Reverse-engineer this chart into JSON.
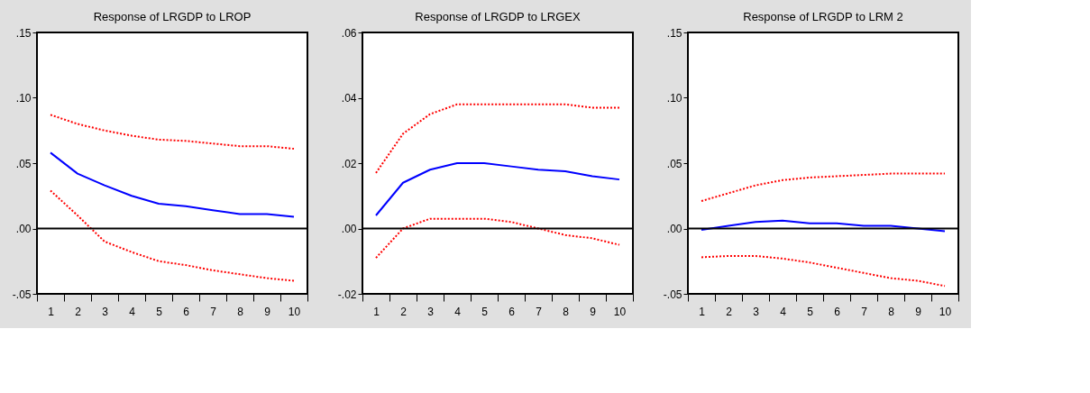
{
  "chart_data": [
    {
      "type": "line",
      "title": "Response of LRGDP to LROP",
      "categories": [
        "1",
        "2",
        "3",
        "4",
        "5",
        "6",
        "7",
        "8",
        "9",
        "10"
      ],
      "ylim": [
        -0.05,
        0.15
      ],
      "yticks": [
        {
          "value": -0.05,
          "label": "-.05"
        },
        {
          "value": 0,
          "label": ".00"
        },
        {
          "value": 0.05,
          "label": ".05"
        },
        {
          "value": 0.1,
          "label": ".10"
        },
        {
          "value": 0.15,
          "label": ".15"
        }
      ],
      "grid": false,
      "ref_lines": [
        {
          "axis": "y",
          "value": 0,
          "color": "#000000"
        }
      ],
      "series": [
        {
          "color": "#0000ff",
          "line_style": "solid",
          "values": [
            0.058,
            0.042,
            0.033,
            0.025,
            0.019,
            0.017,
            0.014,
            0.011,
            0.011,
            0.009
          ]
        },
        {
          "color": "#ff0000",
          "line_style": "dotted",
          "values": [
            0.087,
            0.08,
            0.075,
            0.071,
            0.068,
            0.067,
            0.065,
            0.063,
            0.063,
            0.061
          ]
        },
        {
          "color": "#ff0000",
          "line_style": "dotted",
          "values": [
            0.029,
            0.01,
            -0.01,
            -0.018,
            -0.025,
            -0.028,
            -0.032,
            -0.035,
            -0.038,
            -0.04
          ]
        }
      ]
    },
    {
      "type": "line",
      "title": "Response of LRGDP to LRGEX",
      "categories": [
        "1",
        "2",
        "3",
        "4",
        "5",
        "6",
        "7",
        "8",
        "9",
        "10"
      ],
      "ylim": [
        -0.02,
        0.06
      ],
      "yticks": [
        {
          "value": -0.02,
          "label": "-.02"
        },
        {
          "value": 0,
          "label": ".00"
        },
        {
          "value": 0.02,
          "label": ".02"
        },
        {
          "value": 0.04,
          "label": ".04"
        },
        {
          "value": 0.06,
          "label": ".06"
        }
      ],
      "grid": false,
      "ref_lines": [
        {
          "axis": "y",
          "value": 0,
          "color": "#000000"
        }
      ],
      "series": [
        {
          "color": "#0000ff",
          "line_style": "solid",
          "values": [
            0.004,
            0.014,
            0.018,
            0.02,
            0.02,
            0.019,
            0.018,
            0.0175,
            0.016,
            0.015
          ]
        },
        {
          "color": "#ff0000",
          "line_style": "dotted",
          "values": [
            0.017,
            0.029,
            0.035,
            0.038,
            0.038,
            0.038,
            0.038,
            0.038,
            0.037,
            0.037
          ]
        },
        {
          "color": "#ff0000",
          "line_style": "dotted",
          "values": [
            -0.009,
            0.0,
            0.003,
            0.003,
            0.003,
            0.002,
            0.0,
            -0.002,
            -0.003,
            -0.005
          ]
        }
      ]
    },
    {
      "type": "line",
      "title": "Response of LRGDP to LRM 2",
      "categories": [
        "1",
        "2",
        "3",
        "4",
        "5",
        "6",
        "7",
        "8",
        "9",
        "10"
      ],
      "ylim": [
        -0.05,
        0.15
      ],
      "yticks": [
        {
          "value": -0.05,
          "label": "-.05"
        },
        {
          "value": 0,
          "label": ".00"
        },
        {
          "value": 0.05,
          "label": ".05"
        },
        {
          "value": 0.1,
          "label": ".10"
        },
        {
          "value": 0.15,
          "label": ".15"
        }
      ],
      "grid": false,
      "ref_lines": [
        {
          "axis": "y",
          "value": 0,
          "color": "#000000"
        }
      ],
      "series": [
        {
          "color": "#0000ff",
          "line_style": "solid",
          "values": [
            -0.001,
            0.002,
            0.005,
            0.006,
            0.004,
            0.004,
            0.002,
            0.002,
            0.0,
            -0.002
          ]
        },
        {
          "color": "#ff0000",
          "line_style": "dotted",
          "values": [
            0.021,
            0.027,
            0.033,
            0.037,
            0.039,
            0.04,
            0.041,
            0.042,
            0.042,
            0.042
          ]
        },
        {
          "color": "#ff0000",
          "line_style": "dotted",
          "values": [
            -0.022,
            -0.021,
            -0.021,
            -0.023,
            -0.026,
            -0.03,
            -0.034,
            -0.038,
            -0.04,
            -0.044
          ]
        }
      ]
    }
  ]
}
